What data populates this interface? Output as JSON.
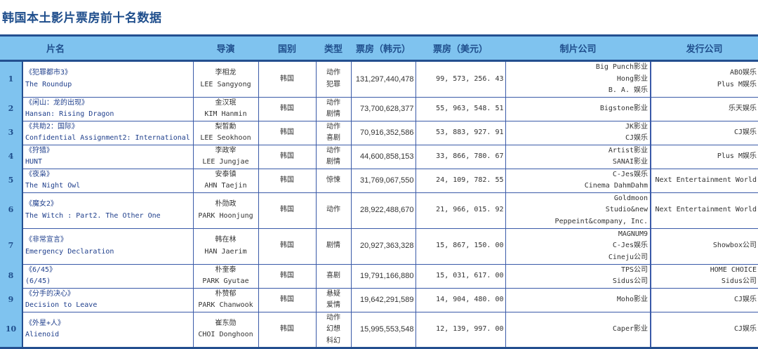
{
  "title": "韩国本土影片票房前十名数据",
  "colors": {
    "header_bg": "#7fc3ef",
    "border": "#234f8f",
    "title": "#1f4e8c"
  },
  "headers": {
    "film": "片名",
    "director": "导演",
    "country": "国别",
    "genre": "类型",
    "box_krw": "票房（韩元）",
    "box_usd": "票房（美元）",
    "producer": "制片公司",
    "distributor": "发行公司"
  },
  "rows": [
    {
      "rank": "1",
      "film_cn": "《犯罪都市3》",
      "film_en": "The Roundup",
      "director_cn": "李相龙",
      "director_en": "LEE Sangyong",
      "country": "韩国",
      "genre": [
        "动作",
        "犯罪"
      ],
      "box_krw": "131,297,440,478",
      "box_usd": "99, 573, 256. 43",
      "producer": [
        "Big Punch影业",
        "Hong影业",
        "B. A. 娱乐"
      ],
      "distributor": [
        "ABO娱乐",
        "Plus M娱乐"
      ]
    },
    {
      "rank": "2",
      "film_cn": "《闲山：龙的出现》",
      "film_en": "Hansan: Rising Dragon",
      "director_cn": "金汉珉",
      "director_en": "KIM Hanmin",
      "country": "韩国",
      "genre": [
        "动作",
        "剧情"
      ],
      "box_krw": "73,700,628,377",
      "box_usd": "55, 963, 548. 51",
      "producer": [
        "Bigstone影业"
      ],
      "distributor": [
        "乐天娱乐"
      ]
    },
    {
      "rank": "3",
      "film_cn": "《共助2：国际》",
      "film_en": "Confidential Assignment2: International",
      "director_cn": "梨晳勳",
      "director_en": "LEE Seokhoon",
      "country": "韩国",
      "genre": [
        "动作",
        "喜剧"
      ],
      "box_krw": "70,916,352,586",
      "box_usd": "53, 883, 927. 91",
      "producer": [
        "JK影业",
        "CJ娱乐"
      ],
      "distributor": [
        "CJ娱乐"
      ]
    },
    {
      "rank": "4",
      "film_cn": "《狩猎》",
      "film_en": "HUNT",
      "director_cn": "李政宰",
      "director_en": "LEE Jungjae",
      "country": "韩国",
      "genre": [
        "动作",
        "剧情"
      ],
      "box_krw": "44,600,858,153",
      "box_usd": "33, 866, 780. 67",
      "producer": [
        "Artist影业",
        "SANAI影业"
      ],
      "distributor": [
        "Plus M娱乐"
      ]
    },
    {
      "rank": "5",
      "film_cn": "《夜枭》",
      "film_en": "The Night Owl",
      "director_cn": "安泰镇",
      "director_en": "AHN Taejin",
      "country": "韩国",
      "genre": [
        "惊悚"
      ],
      "box_krw": "31,769,067,550",
      "box_usd": "24, 109, 782. 55",
      "producer": [
        "C-Jes娱乐",
        "Cinema DahmDahm"
      ],
      "distributor": [
        "Next Entertainment World"
      ]
    },
    {
      "rank": "6",
      "film_cn": "《魔女2》",
      "film_en": "The Witch : Part2. The Other One",
      "director_cn": "朴勋政",
      "director_en": "PARK Hoonjung",
      "country": "韩国",
      "genre": [
        "动作"
      ],
      "box_krw": "28,922,488,670",
      "box_usd": "21, 966, 015. 92",
      "producer": [
        "Goldmoon",
        "Studio&new",
        "Peppeint&company, Inc."
      ],
      "distributor": [
        "Next Entertainment World"
      ]
    },
    {
      "rank": "7",
      "film_cn": "《非常宣言》",
      "film_en": "Emergency Declaration",
      "director_cn": "韩在林",
      "director_en": "HAN Jaerim",
      "country": "韩国",
      "genre": [
        "剧情"
      ],
      "box_krw": "20,927,363,328",
      "box_usd": "15, 867, 150. 00",
      "producer": [
        "MAGNUM9",
        "C-Jes娱乐",
        "Cineju公司"
      ],
      "distributor": [
        "Showbox公司"
      ]
    },
    {
      "rank": "8",
      "film_cn": "《6/45》",
      "film_en": "(6/45)",
      "director_cn": "朴奎泰",
      "director_en": "PARK Gyutae",
      "country": "韩国",
      "genre": [
        "喜剧"
      ],
      "box_krw": "19,791,166,880",
      "box_usd": "15, 031, 617. 00",
      "producer": [
        "TPS公司",
        "Sidus公司"
      ],
      "distributor": [
        "HOME CHOICE",
        "Sidus公司"
      ]
    },
    {
      "rank": "9",
      "film_cn": "《分手的决心》",
      "film_en": "Decision to Leave",
      "director_cn": "朴赞郁",
      "director_en": "PARK Chanwook",
      "country": "韩国",
      "genre": [
        "悬疑",
        "爱情"
      ],
      "box_krw": "19,642,291,589",
      "box_usd": "14, 904, 480. 00",
      "producer": [
        "Moho影业"
      ],
      "distributor": [
        "CJ娱乐"
      ]
    },
    {
      "rank": "10",
      "film_cn": "《外星+人》",
      "film_en": "Alienoid",
      "director_cn": "崔东勋",
      "director_en": "CHOI Donghoon",
      "country": "韩国",
      "genre": [
        "动作",
        "幻想",
        "科幻"
      ],
      "box_krw": "15,995,553,548",
      "box_usd": "12, 139, 997. 00",
      "producer": [
        "Caper影业"
      ],
      "distributor": [
        "CJ娱乐"
      ]
    }
  ]
}
